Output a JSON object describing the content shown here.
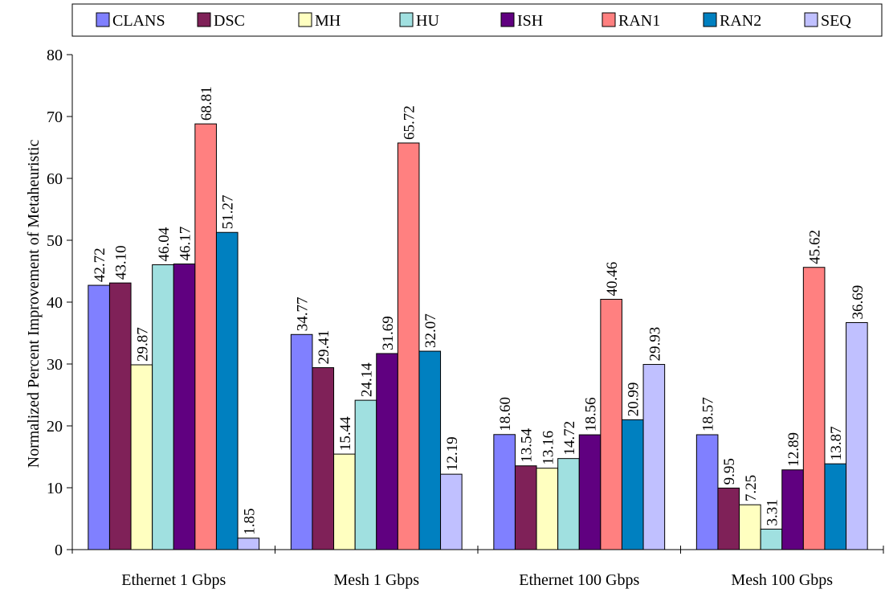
{
  "chart_data": {
    "type": "bar",
    "title": "",
    "xlabel": "",
    "ylabel": "Normalized Percent Improvement of Metaheuristic",
    "ylim": [
      0,
      80
    ],
    "yticks": [
      0,
      10,
      20,
      30,
      40,
      50,
      60,
      70,
      80
    ],
    "grid": false,
    "legend_position": "top",
    "categories": [
      "Ethernet 1 Gbps",
      "Mesh 1 Gbps",
      "Ethernet 100 Gbps",
      "Mesh 100 Gbps"
    ],
    "series": [
      {
        "name": "CLANS",
        "color": "#8080ff",
        "values": [
          42.72,
          34.77,
          18.6,
          18.57
        ],
        "labels": [
          "42.72",
          "34.77",
          "18.60",
          "18.57"
        ]
      },
      {
        "name": "DSC",
        "color": "#7f2158",
        "values": [
          43.1,
          29.41,
          13.54,
          9.95
        ],
        "labels": [
          "43.10",
          "29.41",
          "13.54",
          "9.95"
        ]
      },
      {
        "name": "MH",
        "color": "#ffffc0",
        "values": [
          29.87,
          15.44,
          13.16,
          7.25
        ],
        "labels": [
          "29.87",
          "15.44",
          "13.16",
          "7.25"
        ]
      },
      {
        "name": "HU",
        "color": "#a0e0e0",
        "values": [
          46.04,
          24.14,
          14.72,
          3.31
        ],
        "labels": [
          "46.04",
          "24.14",
          "14.72",
          "3.31"
        ]
      },
      {
        "name": "ISH",
        "color": "#600080",
        "values": [
          46.17,
          31.69,
          18.56,
          12.89
        ],
        "labels": [
          "46.17",
          "31.69",
          "18.56",
          "12.89"
        ]
      },
      {
        "name": "RAN1",
        "color": "#ff8080",
        "values": [
          68.81,
          65.72,
          40.46,
          45.62
        ],
        "labels": [
          "68.81",
          "65.72",
          "40.46",
          "45.62"
        ]
      },
      {
        "name": "RAN2",
        "color": "#0080c0",
        "values": [
          51.27,
          32.07,
          20.99,
          13.87
        ],
        "labels": [
          "51.27",
          "32.07",
          "20.99",
          "13.87"
        ]
      },
      {
        "name": "SEQ",
        "color": "#c0c0ff",
        "values": [
          1.85,
          12.19,
          29.93,
          36.69
        ],
        "labels": [
          "1.85",
          "12.19",
          "29.93",
          "36.69"
        ]
      }
    ]
  }
}
